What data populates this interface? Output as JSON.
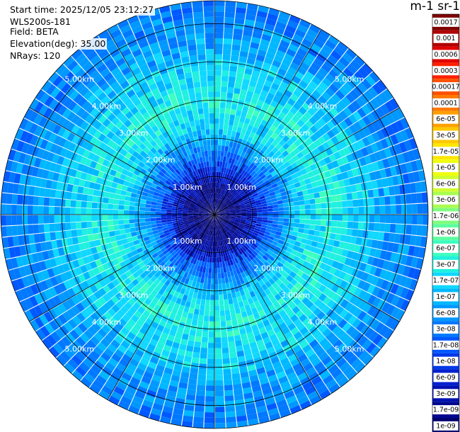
{
  "info": {
    "start_time": "Start time: 2025/12/05 23:12:27",
    "device": "WLS200s-181",
    "field": "Field: BETA",
    "elevation": "Elevation(deg): 35.00",
    "nrays": "NRays: 120"
  },
  "colorbar": {
    "unit_label": "m-1 sr-1",
    "ticks": [
      "0.0017",
      "0.001",
      "0.0006",
      "0.0003",
      "0.00017",
      "0.0001",
      "6e-05",
      "3e-05",
      "1.7e-05",
      "1e-05",
      "6e-06",
      "3e-06",
      "1.7e-06",
      "1e-06",
      "6e-07",
      "3e-07",
      "1.7e-07",
      "1e-07",
      "6e-08",
      "3e-08",
      "1.7e-08",
      "1e-08",
      "6e-09",
      "3e-09",
      "1.7e-09",
      "1e-09"
    ],
    "colors": [
      "#7f0000",
      "#b00000",
      "#e00000",
      "#ff2000",
      "#ff5000",
      "#ff7800",
      "#ffa000",
      "#ffc800",
      "#ffe600",
      "#f0ff10",
      "#d0ff30",
      "#a8ff50",
      "#80ff80",
      "#5cffa0",
      "#3cffc0",
      "#20f0e0",
      "#10d8ff",
      "#00b8ff",
      "#0098ff",
      "#0078ff",
      "#0058ff",
      "#0038e8",
      "#0020d0",
      "#0010b0",
      "#000890",
      "#000070"
    ]
  },
  "chart_data": {
    "type": "heatmap",
    "projection": "polar",
    "n_rays": 120,
    "max_range_km": 5.6,
    "range_rings_km": [
      1,
      2,
      3,
      4,
      5
    ],
    "ring_labels": [
      "1.00km",
      "2.00km",
      "3.00km",
      "4.00km",
      "5.00km"
    ],
    "spoke_step_deg": 30,
    "beta_profile": {
      "range_km": [
        0,
        0.6,
        1.0,
        1.5,
        2.0,
        2.5,
        3.0,
        3.5,
        4.0,
        4.5,
        5.0,
        5.6
      ],
      "beta": [
        1e-09,
        2e-09,
        5e-09,
        3e-08,
        1.2e-07,
        3e-07,
        4e-07,
        2.5e-07,
        1.7e-07,
        9e-08,
        6e-08,
        4e-08
      ]
    }
  }
}
